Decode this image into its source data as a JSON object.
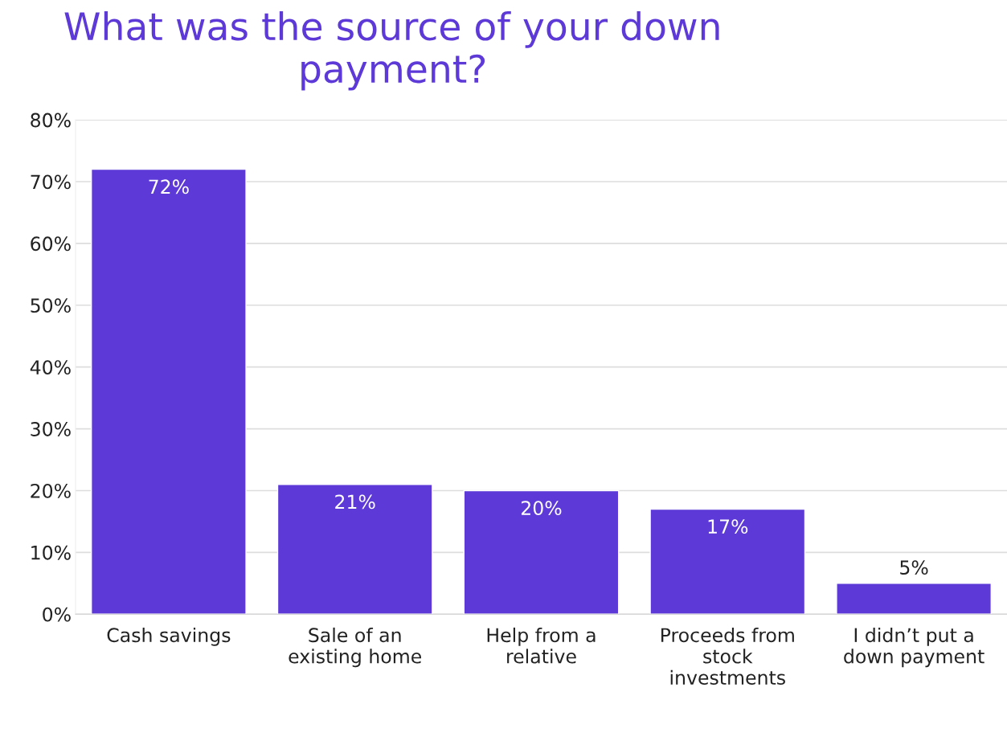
{
  "chart_data": {
    "type": "bar",
    "title": "What was the source of your down payment?",
    "categories": [
      "Cash savings",
      "Sale of an\nexisting home",
      "Help from a\nrelative",
      "Proceeds from\nstock\ninvestments",
      "I didn’t put a\ndown payment"
    ],
    "values": [
      72,
      21,
      20,
      17,
      5
    ],
    "color": "#5d3ad8",
    "value_labels": [
      "72%",
      "21%",
      "20%",
      "17%",
      "5%"
    ],
    "ylim": [
      0,
      80
    ],
    "yticks": [
      {
        "value": 0,
        "label": "0%"
      },
      {
        "value": 10,
        "label": "10%"
      },
      {
        "value": 20,
        "label": "20%"
      },
      {
        "value": 30,
        "label": "30%"
      },
      {
        "value": 40,
        "label": "40%"
      },
      {
        "value": 50,
        "label": "50%"
      },
      {
        "value": 60,
        "label": "60%"
      },
      {
        "value": 70,
        "label": "70%"
      },
      {
        "value": 80,
        "label": "80%"
      }
    ],
    "grid": "y",
    "legend": false
  }
}
